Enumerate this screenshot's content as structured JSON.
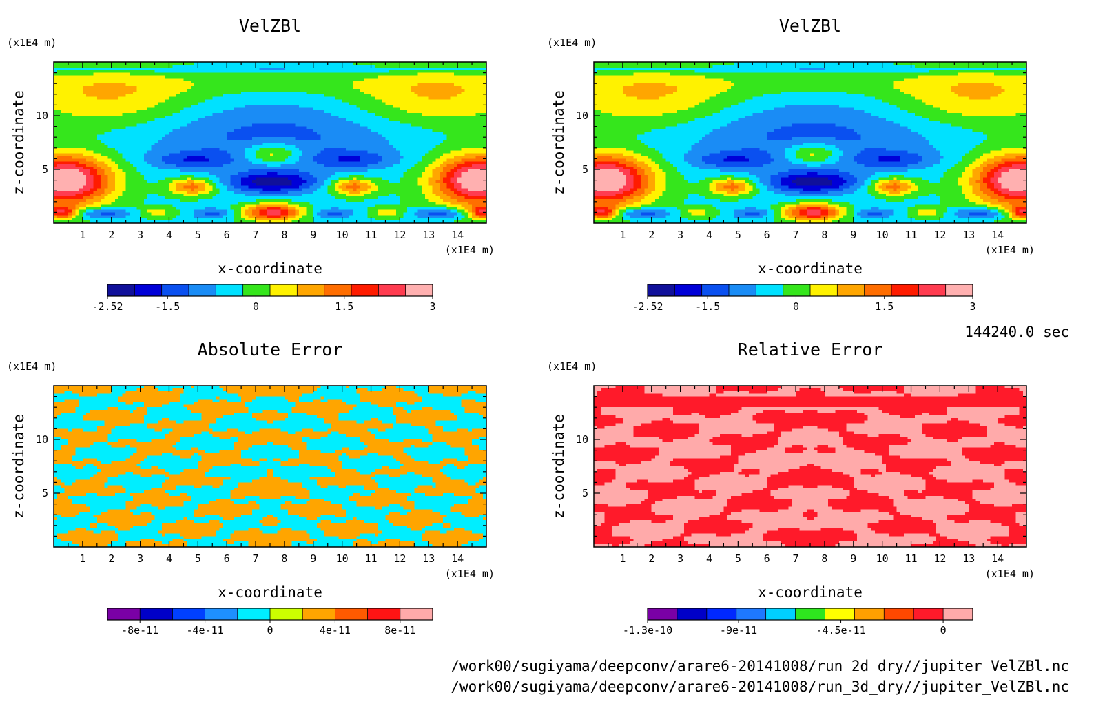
{
  "time_label": "144240.0 sec",
  "footer_lines": [
    "/work00/sugiyama/deepconv/arare6-20141008/run_2d_dry//jupiter_VelZBl.nc",
    "/work00/sugiyama/deepconv/arare6-20141008/run_3d_dry//jupiter_VelZBl.nc"
  ],
  "colors": {
    "palette_main": [
      "#10109a",
      "#0000d8",
      "#0a50f0",
      "#1a8cf5",
      "#00e1ff",
      "#35e61c",
      "#fff200",
      "#ffa600",
      "#ff6e00",
      "#ff1c00",
      "#ff3c50",
      "#ffb0b0"
    ],
    "palette_abs": [
      "#7a00a6",
      "#0000c8",
      "#0040ff",
      "#1e90ff",
      "#00eeff",
      "#ccff00",
      "#ffa500",
      "#ff5a00",
      "#ff1414",
      "#ffaaaa"
    ],
    "palette_rel": [
      "#7a00a6",
      "#0000c8",
      "#0028ff",
      "#1e78ff",
      "#00d0ff",
      "#2ee61e",
      "#ffff00",
      "#ffa000",
      "#ff4800",
      "#ff1a2a",
      "#ffaaaa"
    ]
  },
  "chart_data": [
    {
      "type": "heatmap",
      "title": "VelZBl",
      "xlabel": "x-coordinate",
      "ylabel": "z-coordinate",
      "x_unit": "(x1E4 m)",
      "y_unit": "(x1E4 m)",
      "xlim": [
        0,
        15
      ],
      "ylim": [
        0,
        15
      ],
      "x_ticks": [
        "1",
        "2",
        "3",
        "4",
        "5",
        "6",
        "7",
        "8",
        "9",
        "10",
        "11",
        "12",
        "13",
        "14"
      ],
      "y_ticks": [
        "5",
        "10"
      ],
      "field": "velzbl",
      "colorbar": {
        "min": -2.52,
        "max": 3.0,
        "ticks": [
          "-2.52",
          "-1.5",
          "0",
          "1.5",
          "3"
        ],
        "tick_values": [
          -2.52,
          -1.5,
          0,
          1.5,
          3
        ]
      }
    },
    {
      "type": "heatmap",
      "title": "VelZBl",
      "xlabel": "x-coordinate",
      "ylabel": "z-coordinate",
      "x_unit": "(x1E4 m)",
      "y_unit": "(x1E4 m)",
      "xlim": [
        0,
        15
      ],
      "ylim": [
        0,
        15
      ],
      "x_ticks": [
        "1",
        "2",
        "3",
        "4",
        "5",
        "6",
        "7",
        "8",
        "9",
        "10",
        "11",
        "12",
        "13",
        "14"
      ],
      "y_ticks": [
        "5",
        "10"
      ],
      "field": "velzbl",
      "colorbar": {
        "min": -2.52,
        "max": 3.0,
        "ticks": [
          "-2.52",
          "-1.5",
          "0",
          "1.5",
          "3"
        ],
        "tick_values": [
          -2.52,
          -1.5,
          0,
          1.5,
          3
        ]
      }
    },
    {
      "type": "heatmap",
      "title": "Absolute Error",
      "xlabel": "x-coordinate",
      "ylabel": "z-coordinate",
      "x_unit": "(x1E4 m)",
      "y_unit": "(x1E4 m)",
      "xlim": [
        0,
        15
      ],
      "ylim": [
        0,
        15
      ],
      "x_ticks": [
        "1",
        "2",
        "3",
        "4",
        "5",
        "6",
        "7",
        "8",
        "9",
        "10",
        "11",
        "12",
        "13",
        "14"
      ],
      "y_ticks": [
        "5",
        "10"
      ],
      "field": "abs_error",
      "colorbar": {
        "min": -1e-10,
        "max": 1e-10,
        "ticks": [
          "-8e-11",
          "-4e-11",
          "0",
          "4e-11",
          "8e-11"
        ],
        "tick_values": [
          -8e-11,
          -4e-11,
          0,
          4e-11,
          8e-11
        ]
      }
    },
    {
      "type": "heatmap",
      "title": "Relative Error",
      "xlabel": "x-coordinate",
      "ylabel": "z-coordinate",
      "x_unit": "(x1E4 m)",
      "y_unit": "(x1E4 m)",
      "xlim": [
        0,
        15
      ],
      "ylim": [
        0,
        15
      ],
      "x_ticks": [
        "1",
        "2",
        "3",
        "4",
        "5",
        "6",
        "7",
        "8",
        "9",
        "10",
        "11",
        "12",
        "13",
        "14"
      ],
      "y_ticks": [
        "5",
        "10"
      ],
      "field": "rel_error",
      "colorbar": {
        "min": -1.3e-10,
        "max": 1.3e-11,
        "ticks": [
          "-1.3e-10",
          "-9e-11",
          "-4.5e-11",
          "0"
        ],
        "tick_values": [
          -1.3e-10,
          -9e-11,
          -4.5e-11,
          0
        ]
      }
    }
  ]
}
